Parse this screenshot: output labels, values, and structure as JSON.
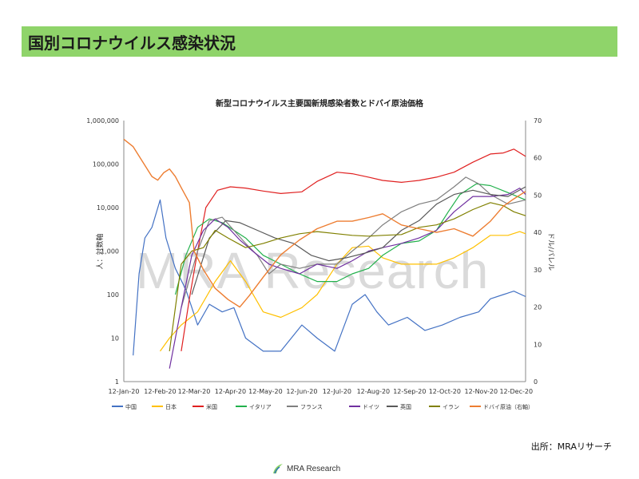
{
  "slide_title": "国別コロナウイルス感染状況",
  "source": "出所：MRAリサーチ",
  "logo_text": "MRA Research",
  "watermark": "MRA Research",
  "chart_data": {
    "type": "line",
    "title": "新型コロナウイルス主要国新規感染者数とドバイ原油価格",
    "ylabel": "人：対数軸",
    "y2label": "ドル/バレル",
    "yscale": "log",
    "ylim": [
      1,
      1000000
    ],
    "y2lim": [
      0,
      70
    ],
    "yticks": [
      "1,000,000",
      "100,000",
      "10,000",
      "1,000",
      "100",
      "10",
      "1"
    ],
    "y2ticks": [
      "70",
      "60",
      "50",
      "40",
      "30",
      "20",
      "10",
      "0"
    ],
    "x_tick_labels": [
      "12-Jan-20",
      "12-Feb-20",
      "12-Mar-20",
      "12-Apr-20",
      "12-May-20",
      "12-Jun-20",
      "12-Jul-20",
      "12-Aug-20",
      "12-Sep-20",
      "12-Oct-20",
      "12-Nov-20",
      "12-Dec-20"
    ],
    "grid": false,
    "legend_position": "bottom",
    "series": [
      {
        "name": "中国",
        "color": "#4472c4",
        "axis": "left",
        "points": [
          [
            "2020-01-20",
            4
          ],
          [
            "2020-01-25",
            300
          ],
          [
            "2020-01-30",
            2000
          ],
          [
            "2020-02-05",
            3500
          ],
          [
            "2020-02-12",
            15000
          ],
          [
            "2020-02-17",
            2000
          ],
          [
            "2020-02-25",
            400
          ],
          [
            "2020-03-05",
            130
          ],
          [
            "2020-03-15",
            20
          ],
          [
            "2020-03-25",
            60
          ],
          [
            "2020-04-05",
            40
          ],
          [
            "2020-04-15",
            50
          ],
          [
            "2020-04-25",
            10
          ],
          [
            "2020-05-10",
            5
          ],
          [
            "2020-05-25",
            5
          ],
          [
            "2020-06-12",
            20
          ],
          [
            "2020-06-25",
            10
          ],
          [
            "2020-07-10",
            5
          ],
          [
            "2020-07-25",
            60
          ],
          [
            "2020-08-05",
            100
          ],
          [
            "2020-08-15",
            40
          ],
          [
            "2020-08-25",
            20
          ],
          [
            "2020-09-10",
            30
          ],
          [
            "2020-09-25",
            15
          ],
          [
            "2020-10-10",
            20
          ],
          [
            "2020-10-25",
            30
          ],
          [
            "2020-11-10",
            40
          ],
          [
            "2020-11-20",
            80
          ],
          [
            "2020-12-01",
            100
          ],
          [
            "2020-12-10",
            120
          ],
          [
            "2020-12-20",
            90
          ]
        ]
      },
      {
        "name": "日本",
        "color": "#ffc000",
        "axis": "left",
        "points": [
          [
            "2020-02-12",
            5
          ],
          [
            "2020-02-20",
            10
          ],
          [
            "2020-03-01",
            20
          ],
          [
            "2020-03-15",
            40
          ],
          [
            "2020-03-30",
            200
          ],
          [
            "2020-04-12",
            600
          ],
          [
            "2020-04-25",
            200
          ],
          [
            "2020-05-10",
            40
          ],
          [
            "2020-05-25",
            30
          ],
          [
            "2020-06-12",
            50
          ],
          [
            "2020-06-25",
            100
          ],
          [
            "2020-07-12",
            500
          ],
          [
            "2020-07-25",
            1200
          ],
          [
            "2020-08-08",
            1300
          ],
          [
            "2020-08-20",
            700
          ],
          [
            "2020-09-05",
            500
          ],
          [
            "2020-09-20",
            500
          ],
          [
            "2020-10-05",
            500
          ],
          [
            "2020-10-20",
            700
          ],
          [
            "2020-11-05",
            1200
          ],
          [
            "2020-11-20",
            2300
          ],
          [
            "2020-12-05",
            2300
          ],
          [
            "2020-12-15",
            2800
          ],
          [
            "2020-12-20",
            2500
          ]
        ]
      },
      {
        "name": "米国",
        "color": "#e02020",
        "axis": "left",
        "points": [
          [
            "2020-03-01",
            5
          ],
          [
            "2020-03-08",
            80
          ],
          [
            "2020-03-15",
            1000
          ],
          [
            "2020-03-22",
            10000
          ],
          [
            "2020-04-01",
            25000
          ],
          [
            "2020-04-12",
            30000
          ],
          [
            "2020-04-25",
            28000
          ],
          [
            "2020-05-10",
            24000
          ],
          [
            "2020-05-25",
            21000
          ],
          [
            "2020-06-12",
            23000
          ],
          [
            "2020-06-25",
            40000
          ],
          [
            "2020-07-12",
            65000
          ],
          [
            "2020-07-25",
            60000
          ],
          [
            "2020-08-08",
            50000
          ],
          [
            "2020-08-20",
            42000
          ],
          [
            "2020-09-05",
            38000
          ],
          [
            "2020-09-20",
            42000
          ],
          [
            "2020-10-05",
            50000
          ],
          [
            "2020-10-20",
            65000
          ],
          [
            "2020-11-05",
            110000
          ],
          [
            "2020-11-20",
            170000
          ],
          [
            "2020-12-01",
            180000
          ],
          [
            "2020-12-10",
            220000
          ],
          [
            "2020-12-20",
            150000
          ]
        ]
      },
      {
        "name": "イタリア",
        "color": "#22b14c",
        "axis": "left",
        "points": [
          [
            "2020-02-25",
            100
          ],
          [
            "2020-03-05",
            800
          ],
          [
            "2020-03-15",
            3500
          ],
          [
            "2020-03-25",
            5500
          ],
          [
            "2020-04-05",
            4500
          ],
          [
            "2020-04-15",
            3000
          ],
          [
            "2020-04-25",
            2000
          ],
          [
            "2020-05-10",
            800
          ],
          [
            "2020-05-25",
            500
          ],
          [
            "2020-06-10",
            300
          ],
          [
            "2020-06-25",
            200
          ],
          [
            "2020-07-12",
            200
          ],
          [
            "2020-07-25",
            300
          ],
          [
            "2020-08-08",
            400
          ],
          [
            "2020-08-20",
            800
          ],
          [
            "2020-09-05",
            1500
          ],
          [
            "2020-09-20",
            1700
          ],
          [
            "2020-10-05",
            3000
          ],
          [
            "2020-10-15",
            8000
          ],
          [
            "2020-10-25",
            20000
          ],
          [
            "2020-11-08",
            35000
          ],
          [
            "2020-11-20",
            32000
          ],
          [
            "2020-12-05",
            22000
          ],
          [
            "2020-12-20",
            15000
          ]
        ]
      },
      {
        "name": "フランス",
        "color": "#7f7f7f",
        "axis": "left",
        "points": [
          [
            "2020-03-01",
            50
          ],
          [
            "2020-03-15",
            1000
          ],
          [
            "2020-03-25",
            5000
          ],
          [
            "2020-04-05",
            6000
          ],
          [
            "2020-04-15",
            3000
          ],
          [
            "2020-04-25",
            1500
          ],
          [
            "2020-05-05",
            800
          ],
          [
            "2020-05-15",
            300
          ],
          [
            "2020-05-25",
            500
          ],
          [
            "2020-06-10",
            400
          ],
          [
            "2020-06-25",
            500
          ],
          [
            "2020-07-12",
            500
          ],
          [
            "2020-07-25",
            1000
          ],
          [
            "2020-08-08",
            2000
          ],
          [
            "2020-08-20",
            4000
          ],
          [
            "2020-09-05",
            8000
          ],
          [
            "2020-09-20",
            12000
          ],
          [
            "2020-10-05",
            15000
          ],
          [
            "2020-10-20",
            30000
          ],
          [
            "2020-10-30",
            50000
          ],
          [
            "2020-11-10",
            35000
          ],
          [
            "2020-11-20",
            20000
          ],
          [
            "2020-12-05",
            12000
          ],
          [
            "2020-12-20",
            15000
          ]
        ]
      },
      {
        "name": "ドイツ",
        "color": "#7030a0",
        "axis": "left",
        "points": [
          [
            "2020-02-20",
            2
          ],
          [
            "2020-03-01",
            50
          ],
          [
            "2020-03-10",
            800
          ],
          [
            "2020-03-20",
            3000
          ],
          [
            "2020-03-30",
            5500
          ],
          [
            "2020-04-10",
            3500
          ],
          [
            "2020-04-20",
            1800
          ],
          [
            "2020-05-01",
            1000
          ],
          [
            "2020-05-15",
            500
          ],
          [
            "2020-05-25",
            400
          ],
          [
            "2020-06-10",
            300
          ],
          [
            "2020-06-25",
            500
          ],
          [
            "2020-07-12",
            400
          ],
          [
            "2020-07-25",
            600
          ],
          [
            "2020-08-08",
            1000
          ],
          [
            "2020-08-20",
            1200
          ],
          [
            "2020-09-05",
            1500
          ],
          [
            "2020-09-20",
            2000
          ],
          [
            "2020-10-05",
            3000
          ],
          [
            "2020-10-20",
            8000
          ],
          [
            "2020-11-05",
            18000
          ],
          [
            "2020-11-20",
            18000
          ],
          [
            "2020-12-05",
            20000
          ],
          [
            "2020-12-15",
            28000
          ],
          [
            "2020-12-20",
            20000
          ]
        ]
      },
      {
        "name": "英国",
        "color": "#595959",
        "axis": "left",
        "points": [
          [
            "2020-03-10",
            100
          ],
          [
            "2020-03-25",
            2000
          ],
          [
            "2020-04-08",
            5000
          ],
          [
            "2020-04-20",
            4500
          ],
          [
            "2020-05-05",
            3000
          ],
          [
            "2020-05-20",
            2000
          ],
          [
            "2020-06-05",
            1500
          ],
          [
            "2020-06-20",
            800
          ],
          [
            "2020-07-05",
            600
          ],
          [
            "2020-07-20",
            700
          ],
          [
            "2020-08-05",
            900
          ],
          [
            "2020-08-20",
            1200
          ],
          [
            "2020-09-05",
            3000
          ],
          [
            "2020-09-20",
            5000
          ],
          [
            "2020-10-05",
            12000
          ],
          [
            "2020-10-20",
            20000
          ],
          [
            "2020-11-05",
            25000
          ],
          [
            "2020-11-20",
            20000
          ],
          [
            "2020-12-05",
            18000
          ],
          [
            "2020-12-20",
            30000
          ]
        ]
      },
      {
        "name": "イラン",
        "color": "#808000",
        "axis": "left",
        "points": [
          [
            "2020-02-20",
            5
          ],
          [
            "2020-03-01",
            500
          ],
          [
            "2020-03-10",
            1000
          ],
          [
            "2020-03-20",
            1200
          ],
          [
            "2020-03-30",
            3000
          ],
          [
            "2020-04-10",
            2000
          ],
          [
            "2020-04-25",
            1200
          ],
          [
            "2020-05-10",
            1500
          ],
          [
            "2020-05-25",
            2000
          ],
          [
            "2020-06-10",
            2500
          ],
          [
            "2020-06-25",
            2800
          ],
          [
            "2020-07-12",
            2500
          ],
          [
            "2020-07-25",
            2300
          ],
          [
            "2020-08-08",
            2200
          ],
          [
            "2020-08-20",
            2300
          ],
          [
            "2020-09-05",
            2400
          ],
          [
            "2020-09-20",
            3500
          ],
          [
            "2020-10-05",
            4000
          ],
          [
            "2020-10-20",
            5500
          ],
          [
            "2020-11-05",
            9000
          ],
          [
            "2020-11-20",
            13000
          ],
          [
            "2020-12-01",
            11000
          ],
          [
            "2020-12-10",
            8000
          ],
          [
            "2020-12-20",
            6500
          ]
        ]
      },
      {
        "name": "ドバイ原油（右軸）",
        "color": "#ed7d31",
        "axis": "right",
        "points": [
          [
            "2020-01-12",
            65
          ],
          [
            "2020-01-20",
            63
          ],
          [
            "2020-01-30",
            58
          ],
          [
            "2020-02-05",
            55
          ],
          [
            "2020-02-10",
            54
          ],
          [
            "2020-02-15",
            56
          ],
          [
            "2020-02-20",
            57
          ],
          [
            "2020-02-25",
            55
          ],
          [
            "2020-03-01",
            52
          ],
          [
            "2020-03-08",
            48
          ],
          [
            "2020-03-12",
            35
          ],
          [
            "2020-03-20",
            30
          ],
          [
            "2020-03-30",
            25
          ],
          [
            "2020-04-10",
            22
          ],
          [
            "2020-04-20",
            20
          ],
          [
            "2020-04-28",
            23
          ],
          [
            "2020-05-10",
            28
          ],
          [
            "2020-05-25",
            34
          ],
          [
            "2020-06-10",
            38
          ],
          [
            "2020-06-25",
            41
          ],
          [
            "2020-07-12",
            43
          ],
          [
            "2020-07-25",
            43
          ],
          [
            "2020-08-08",
            44
          ],
          [
            "2020-08-20",
            45
          ],
          [
            "2020-09-05",
            42
          ],
          [
            "2020-09-20",
            41
          ],
          [
            "2020-10-05",
            40
          ],
          [
            "2020-10-20",
            41
          ],
          [
            "2020-11-05",
            39
          ],
          [
            "2020-11-20",
            43
          ],
          [
            "2020-12-01",
            47
          ],
          [
            "2020-12-10",
            49
          ],
          [
            "2020-12-20",
            51
          ]
        ]
      }
    ]
  }
}
